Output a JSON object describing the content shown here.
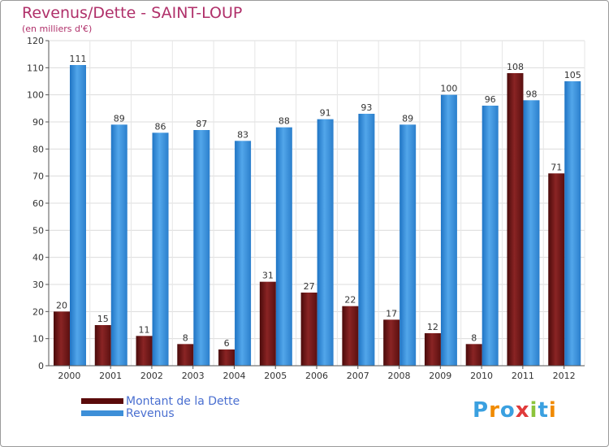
{
  "chart_data": {
    "type": "bar",
    "title": "Revenus/Dette - SAINT-LOUP",
    "subtitle": "(en milliers d'€)",
    "categories": [
      "2000",
      "2001",
      "2002",
      "2003",
      "2004",
      "2005",
      "2006",
      "2007",
      "2008",
      "2009",
      "2010",
      "2011",
      "2012"
    ],
    "series": [
      {
        "name": "Montant de la Dette",
        "color": "#7a1a1a",
        "values": [
          20,
          15,
          11,
          8,
          6,
          31,
          27,
          22,
          17,
          12,
          8,
          108,
          71
        ]
      },
      {
        "name": "Revenus",
        "color": "#3d8fd8",
        "values": [
          111,
          89,
          86,
          87,
          83,
          88,
          91,
          93,
          89,
          100,
          96,
          98,
          105
        ]
      }
    ],
    "ylim": [
      0,
      120
    ],
    "yticks": [
      0,
      10,
      20,
      30,
      40,
      50,
      60,
      70,
      80,
      90,
      100,
      110,
      120
    ],
    "grid": true,
    "legend": "bottom-left"
  },
  "logo": {
    "text": "Proxiti",
    "colors": [
      "#3aa0e0",
      "#f08a00",
      "#3aa0e0",
      "#e03a3a",
      "#8cc43c",
      "#3aa0e0",
      "#f08a00"
    ]
  }
}
